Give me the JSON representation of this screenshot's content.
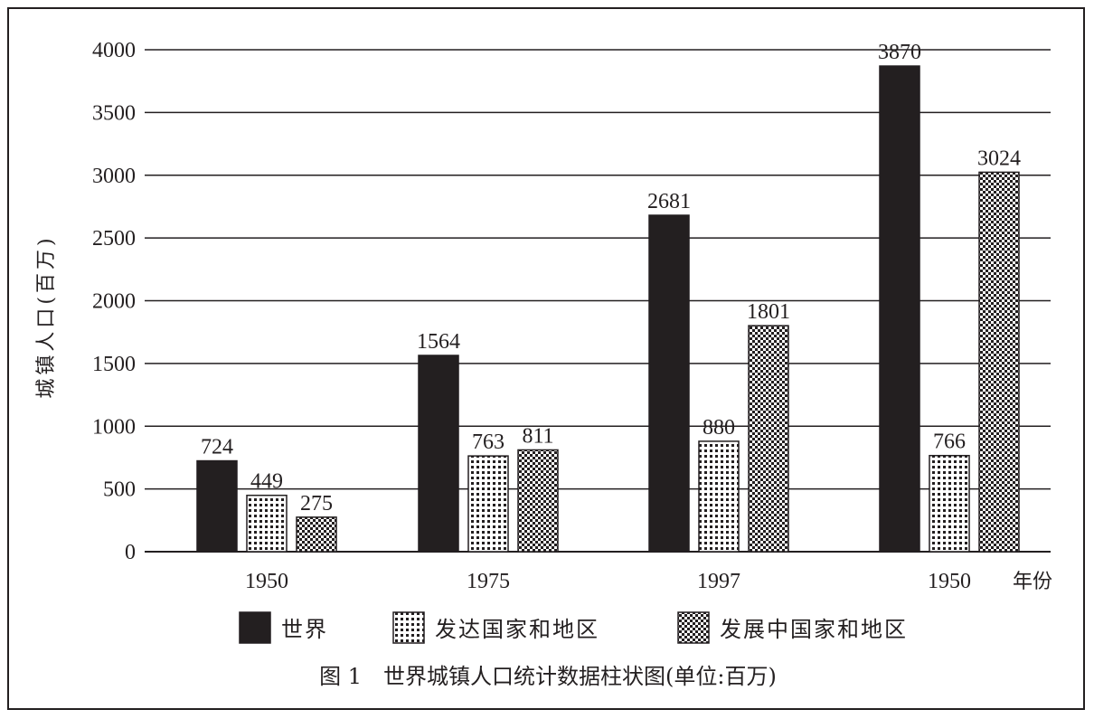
{
  "chart_data": {
    "type": "bar",
    "caption": "图 1　世界城镇人口统计数据柱状图(单位:百万)",
    "ylabel": "城镇人口(百万)",
    "xlabel": "年份",
    "ylim": [
      0,
      4000
    ],
    "yticks": [
      0,
      500,
      1000,
      1500,
      2000,
      2500,
      3000,
      3500,
      4000
    ],
    "grid": true,
    "legend_position": "bottom",
    "categories": [
      "1950",
      "1975",
      "1997",
      "1950"
    ],
    "series": [
      {
        "name": "世界",
        "pattern": "solid",
        "color": "#231f20",
        "values": [
          724,
          1564,
          2681,
          3870
        ]
      },
      {
        "name": "发达国家和地区",
        "pattern": "grid",
        "color": "#231f20",
        "values": [
          449,
          763,
          880,
          766
        ]
      },
      {
        "name": "发展中国家和地区",
        "pattern": "checker",
        "color": "#231f20",
        "values": [
          275,
          811,
          1801,
          3024
        ]
      }
    ]
  }
}
